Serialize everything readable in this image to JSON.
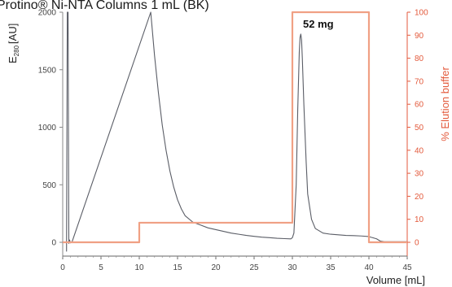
{
  "chart_data": {
    "type": "line",
    "title": "Protino® Ni-NTA Columns 1 mL (BK)",
    "xlabel": "Volume [mL]",
    "ylabel_left_main": "E",
    "ylabel_left_sub": "280",
    "ylabel_left_unit": "[AU]",
    "ylabel_right": "% Elution buffer",
    "xlim": [
      0,
      45
    ],
    "ylim_left": [
      -120,
      2000
    ],
    "ylim_right": [
      -6,
      100
    ],
    "x_ticks": [
      0,
      5,
      10,
      15,
      20,
      25,
      30,
      35,
      40,
      45
    ],
    "y_left_ticks": [
      0,
      500,
      1000,
      1500,
      2000
    ],
    "y_right_ticks": [
      0,
      10,
      20,
      30,
      40,
      50,
      60,
      70,
      80,
      90,
      100
    ],
    "annotation": {
      "text": "52 mg",
      "x": 31.5,
      "y": 1880
    },
    "series": [
      {
        "axis": "left",
        "color": "#5a5d66",
        "x": [
          0.5,
          0.6,
          0.7,
          0.8,
          0.9,
          1.0,
          1.2,
          11.5,
          12.0,
          12.5,
          13.0,
          13.5,
          14.0,
          14.5,
          15.0,
          15.5,
          16.0,
          17.0,
          18.0,
          19.0,
          20.0,
          21.0,
          22.0,
          23.0,
          24.0,
          25.0,
          26.0,
          27.0,
          28.0,
          29.0,
          29.8,
          30.0,
          30.2,
          30.5,
          30.7,
          30.9,
          31.0,
          31.1,
          31.2,
          31.3,
          31.5,
          31.8,
          32.0,
          32.5,
          33.0,
          34.0,
          35.0,
          36.0,
          37.0,
          38.0,
          39.0,
          40.0,
          40.2,
          40.5,
          41.0,
          41.5,
          42.0,
          43.0,
          44.0,
          45.0
        ],
        "y": [
          -80,
          2000,
          2000,
          -10,
          20,
          -5,
          0,
          2000,
          1620,
          1300,
          1020,
          800,
          620,
          480,
          370,
          290,
          230,
          175,
          150,
          125,
          110,
          95,
          80,
          70,
          60,
          52,
          45,
          40,
          35,
          32,
          30,
          40,
          80,
          500,
          1150,
          1650,
          1780,
          1810,
          1760,
          1600,
          1200,
          700,
          420,
          200,
          120,
          80,
          70,
          65,
          60,
          58,
          55,
          50,
          45,
          40,
          30,
          10,
          5,
          5,
          5,
          5
        ]
      },
      {
        "axis": "right",
        "color": "#f0a084",
        "x": [
          0,
          10,
          10,
          30,
          30,
          40,
          40,
          45
        ],
        "y": [
          0,
          0,
          8.5,
          8.5,
          100,
          100,
          0,
          0
        ]
      }
    ]
  }
}
